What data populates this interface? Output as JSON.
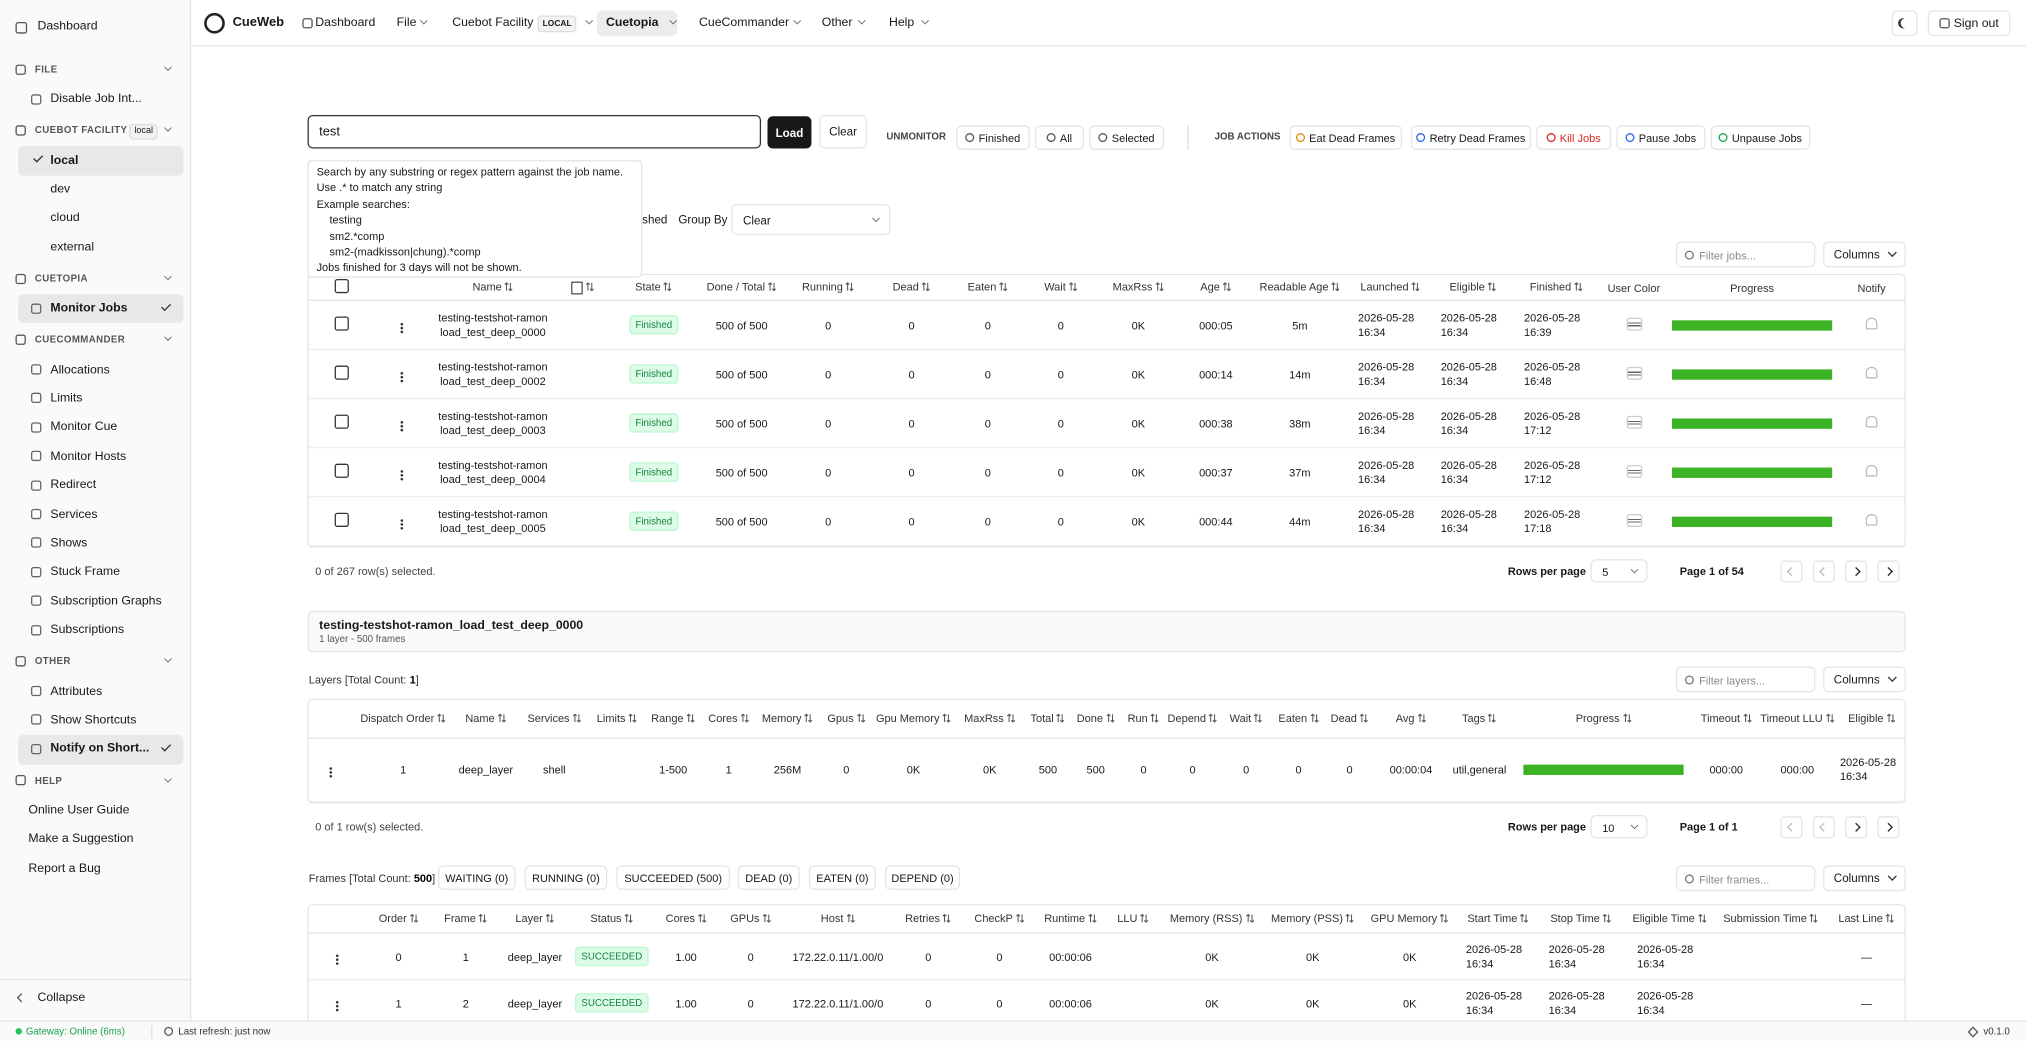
{
  "sidebar": {
    "top": "Dashboard",
    "sections": [
      {
        "title": "FILE",
        "items": [
          {
            "label": "Disable Job Int..."
          }
        ]
      },
      {
        "title": "CUEBOT FACILITY",
        "badge": "local",
        "items": [
          {
            "label": "local",
            "active": true
          },
          {
            "label": "dev"
          },
          {
            "label": "cloud"
          },
          {
            "label": "external"
          }
        ]
      },
      {
        "title": "CUETOPIA",
        "items": [
          {
            "label": "Monitor Jobs",
            "active": true
          }
        ]
      },
      {
        "title": "CUECOMMANDER",
        "items": [
          {
            "label": "Allocations"
          },
          {
            "label": "Limits"
          },
          {
            "label": "Monitor Cue"
          },
          {
            "label": "Monitor Hosts"
          },
          {
            "label": "Redirect"
          },
          {
            "label": "Services"
          },
          {
            "label": "Shows"
          },
          {
            "label": "Stuck Frame"
          },
          {
            "label": "Subscription Graphs"
          },
          {
            "label": "Subscriptions"
          }
        ]
      },
      {
        "title": "OTHER",
        "items": [
          {
            "label": "Attributes"
          },
          {
            "label": "Show Shortcuts"
          },
          {
            "label": "Notify on Short...",
            "active": true
          }
        ]
      },
      {
        "title": "HELP",
        "items": [
          {
            "label": "Online User Guide"
          },
          {
            "label": "Make a Suggestion"
          },
          {
            "label": "Report a Bug"
          }
        ]
      }
    ],
    "collapse": "Collapse"
  },
  "nav": {
    "brand": "CueWeb",
    "items": [
      {
        "label": "Dashboard"
      },
      {
        "label": "File"
      },
      {
        "label": "Cuebot Facility",
        "badge": "LOCAL"
      },
      {
        "label": "Cuetopia",
        "active": true
      },
      {
        "label": "CueCommander"
      },
      {
        "label": "Other"
      },
      {
        "label": "Help"
      }
    ],
    "sign_out": "Sign out"
  },
  "toolbar": {
    "search": "test",
    "load": "Load",
    "clear": "Clear",
    "unmonitor": {
      "label": "UNMONITOR",
      "buttons": [
        "Finished",
        "All",
        "Selected"
      ]
    },
    "job_actions": {
      "label": "JOB ACTIONS",
      "buttons": [
        "Eat Dead Frames",
        "Retry Dead Frames",
        "Kill Jobs",
        "Pause Jobs",
        "Unpause Jobs"
      ]
    }
  },
  "search_help": [
    "Search by any substring or regex pattern against the job name.",
    "Use .* to match any string",
    "Example searches:",
    "testing",
    "sm2.*comp",
    "sm2-(madkisson|chung).*comp",
    "Jobs finished for 3 days will not be shown."
  ],
  "group_by": {
    "fragment": "shed",
    "label": "Group By",
    "value": "Clear"
  },
  "jobs": {
    "filter_placeholder": "Filter jobs...",
    "columns_button": "Columns",
    "headers": [
      null,
      null,
      "Name",
      null,
      "State",
      "Done / Total",
      "Running",
      "Dead",
      "Eaten",
      "Wait",
      "MaxRss",
      "Age",
      "Readable Age",
      "Launched",
      "Eligible",
      "Finished",
      "User Color",
      "Progress",
      "Notify"
    ],
    "rows": [
      [
        null,
        null,
        [
          "testing-testshot-ramon",
          "load_test_deep_0000"
        ],
        null,
        "Finished",
        "500 of 500",
        "0",
        "0",
        "0",
        "0",
        "0K",
        "000:05",
        "5m",
        "2026-05-28 16:34",
        "2026-05-28 16:34",
        "2026-05-28 16:39",
        null,
        100,
        null
      ],
      [
        null,
        null,
        [
          "testing-testshot-ramon",
          "load_test_deep_0002"
        ],
        null,
        "Finished",
        "500 of 500",
        "0",
        "0",
        "0",
        "0",
        "0K",
        "000:14",
        "14m",
        "2026-05-28 16:34",
        "2026-05-28 16:34",
        "2026-05-28 16:48",
        null,
        100,
        null
      ],
      [
        null,
        null,
        [
          "testing-testshot-ramon",
          "load_test_deep_0003"
        ],
        null,
        "Finished",
        "500 of 500",
        "0",
        "0",
        "0",
        "0",
        "0K",
        "000:38",
        "38m",
        "2026-05-28 16:34",
        "2026-05-28 16:34",
        "2026-05-28 17:12",
        null,
        100,
        null
      ],
      [
        null,
        null,
        [
          "testing-testshot-ramon",
          "load_test_deep_0004"
        ],
        null,
        "Finished",
        "500 of 500",
        "0",
        "0",
        "0",
        "0",
        "0K",
        "000:37",
        "37m",
        "2026-05-28 16:34",
        "2026-05-28 16:34",
        "2026-05-28 17:12",
        null,
        100,
        null
      ],
      [
        null,
        null,
        [
          "testing-testshot-ramon",
          "load_test_deep_0005"
        ],
        null,
        "Finished",
        "500 of 500",
        "0",
        "0",
        "0",
        "0",
        "0K",
        "000:44",
        "44m",
        "2026-05-28 16:34",
        "2026-05-28 16:34",
        "2026-05-28 17:18",
        null,
        100,
        null
      ]
    ],
    "selected_text": "0 of 267 row(s) selected.",
    "rows_per_page_label": "Rows per page",
    "rows_per_page": "5",
    "page": "Page 1 of 54"
  },
  "detail": {
    "title": "testing-testshot-ramon_load_test_deep_0000",
    "subtitle": "1 layer - 500 frames"
  },
  "layers": {
    "title_prefix": "Layers [Total Count:",
    "count": "1",
    "title_suffix": "]",
    "filter_placeholder": "Filter layers...",
    "columns_button": "Columns",
    "headers": [
      null,
      "Dispatch Order",
      "Name",
      "Services",
      "Limits",
      "Range",
      "Cores",
      "Memory",
      "Gpus",
      "Gpu Memory",
      "MaxRss",
      "Total",
      "Done",
      "Run",
      "Depend",
      "Wait",
      "Eaten",
      "Dead",
      "Avg",
      "Tags",
      "Progress",
      "Timeout",
      "Timeout LLU",
      "Eligible"
    ],
    "rows": [
      [
        null,
        "1",
        "deep_layer",
        "shell",
        null,
        "1-500",
        "1",
        "256M",
        "0",
        "0K",
        "0K",
        "500",
        "500",
        "0",
        "0",
        "0",
        "0",
        "0",
        "00:00:04",
        "util,general",
        100,
        "000:00",
        "000:00",
        "2026-05-28 16:34"
      ]
    ],
    "selected_text": "0 of 1 row(s) selected.",
    "rows_per_page_label": "Rows per page",
    "rows_per_page": "10",
    "page": "Page 1 of 1"
  },
  "frames": {
    "title_prefix": "Frames [Total Count:",
    "count": "500",
    "title_suffix": "]",
    "filters": [
      "WAITING (0)",
      "RUNNING (0)",
      "SUCCEEDED (500)",
      "DEAD (0)",
      "EATEN (0)",
      "DEPEND (0)"
    ],
    "filter_placeholder": "Filter frames...",
    "columns_button": "Columns",
    "headers": [
      null,
      "Order",
      "Frame",
      "Layer",
      "Status",
      "Cores",
      "GPUs",
      "Host",
      "Retries",
      "CheckP",
      "Runtime",
      "LLU",
      "Memory (RSS)",
      "Memory (PSS)",
      "GPU Memory",
      "Start Time",
      "Stop Time",
      "Eligible Time",
      "Submission Time",
      "Last Line"
    ],
    "rows": [
      [
        null,
        "0",
        "1",
        "deep_layer",
        "SUCCEEDED",
        "1.00",
        "0",
        "172.22.0.11/1.00/0",
        "0",
        "0",
        "00:00:06",
        null,
        "0K",
        "0K",
        "0K",
        "2026-05-28 16:34",
        "2026-05-28 16:34",
        "2026-05-28 16:34",
        null,
        "—"
      ],
      [
        null,
        "1",
        "2",
        "deep_layer",
        "SUCCEEDED",
        "1.00",
        "0",
        "172.22.0.11/1.00/0",
        "0",
        "0",
        "00:00:06",
        null,
        "0K",
        "0K",
        "0K",
        "2026-05-28 16:34",
        "2026-05-28 16:34",
        "2026-05-28 16:34",
        null,
        "—"
      ]
    ]
  },
  "status_bar": {
    "gateway": "Gateway: Online (6ms)",
    "refresh": "Last refresh: just now",
    "version": "v0.1.0"
  }
}
